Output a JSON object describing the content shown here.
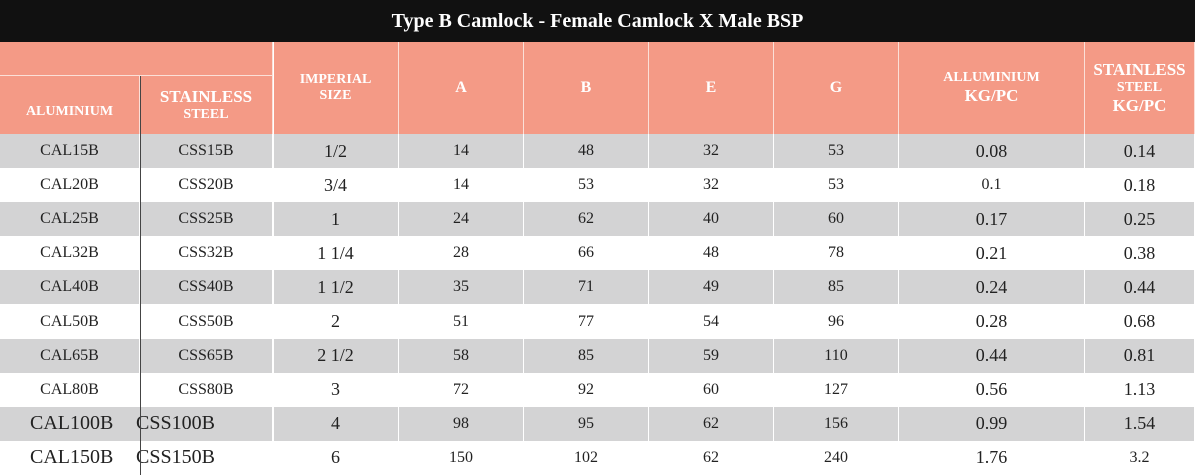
{
  "title": "Type B Camlock - Female Camlock X Male BSP",
  "headers": {
    "aluminium": "ALUMINIUM",
    "stainless_line1": "STAINLESS",
    "stainless_line2": "STEEL",
    "imperial_line1": "IMPERIAL",
    "imperial_line2": "SIZE",
    "a": "A",
    "b": "B",
    "e": "E",
    "g": "G",
    "alum_kg_line1": "ALLUMINIUM",
    "alum_kg_line2": "KG/PC",
    "ss_kg_line1": "STAINLESS",
    "ss_kg_line2": "STEEL",
    "ss_kg_line3": "KG/PC"
  },
  "rows": [
    {
      "aluminium": "CAL15B",
      "stainless": "CSS15B",
      "imperial": "1/2",
      "a": "14",
      "b": "48",
      "e": "32",
      "g": "53",
      "al_kg": "0.08",
      "ss_kg": "0.14"
    },
    {
      "aluminium": "CAL20B",
      "stainless": "CSS20B",
      "imperial": "3/4",
      "a": "14",
      "b": "53",
      "e": "32",
      "g": "53",
      "al_kg": "0.1",
      "ss_kg": "0.18"
    },
    {
      "aluminium": "CAL25B",
      "stainless": "CSS25B",
      "imperial": "1",
      "a": "24",
      "b": "62",
      "e": "40",
      "g": "60",
      "al_kg": "0.17",
      "ss_kg": "0.25"
    },
    {
      "aluminium": "CAL32B",
      "stainless": "CSS32B",
      "imperial": "1 1/4",
      "a": "28",
      "b": "66",
      "e": "48",
      "g": "78",
      "al_kg": "0.21",
      "ss_kg": "0.38"
    },
    {
      "aluminium": "CAL40B",
      "stainless": "CSS40B",
      "imperial": "1 1/2",
      "a": "35",
      "b": "71",
      "e": "49",
      "g": "85",
      "al_kg": "0.24",
      "ss_kg": "0.44"
    },
    {
      "aluminium": "CAL50B",
      "stainless": "CSS50B",
      "imperial": "2",
      "a": "51",
      "b": "77",
      "e": "54",
      "g": "96",
      "al_kg": "0.28",
      "ss_kg": "0.68"
    },
    {
      "aluminium": "CAL65B",
      "stainless": "CSS65B",
      "imperial": "2 1/2",
      "a": "58",
      "b": "85",
      "e": "59",
      "g": "110",
      "al_kg": "0.44",
      "ss_kg": "0.81"
    },
    {
      "aluminium": "CAL80B",
      "stainless": "CSS80B",
      "imperial": "3",
      "a": "72",
      "b": "92",
      "e": "60",
      "g": "127",
      "al_kg": "0.56",
      "ss_kg": "1.13"
    },
    {
      "aluminium": "CAL100B",
      "stainless": "CSS100B",
      "imperial": "4",
      "a": "98",
      "b": "95",
      "e": "62",
      "g": "156",
      "al_kg": "0.99",
      "ss_kg": "1.54"
    },
    {
      "aluminium": "CAL150B",
      "stainless": "CSS150B",
      "imperial": "6",
      "a": "150",
      "b": "102",
      "e": "62",
      "g": "240",
      "al_kg": "1.76",
      "ss_kg": "3.2"
    }
  ]
}
